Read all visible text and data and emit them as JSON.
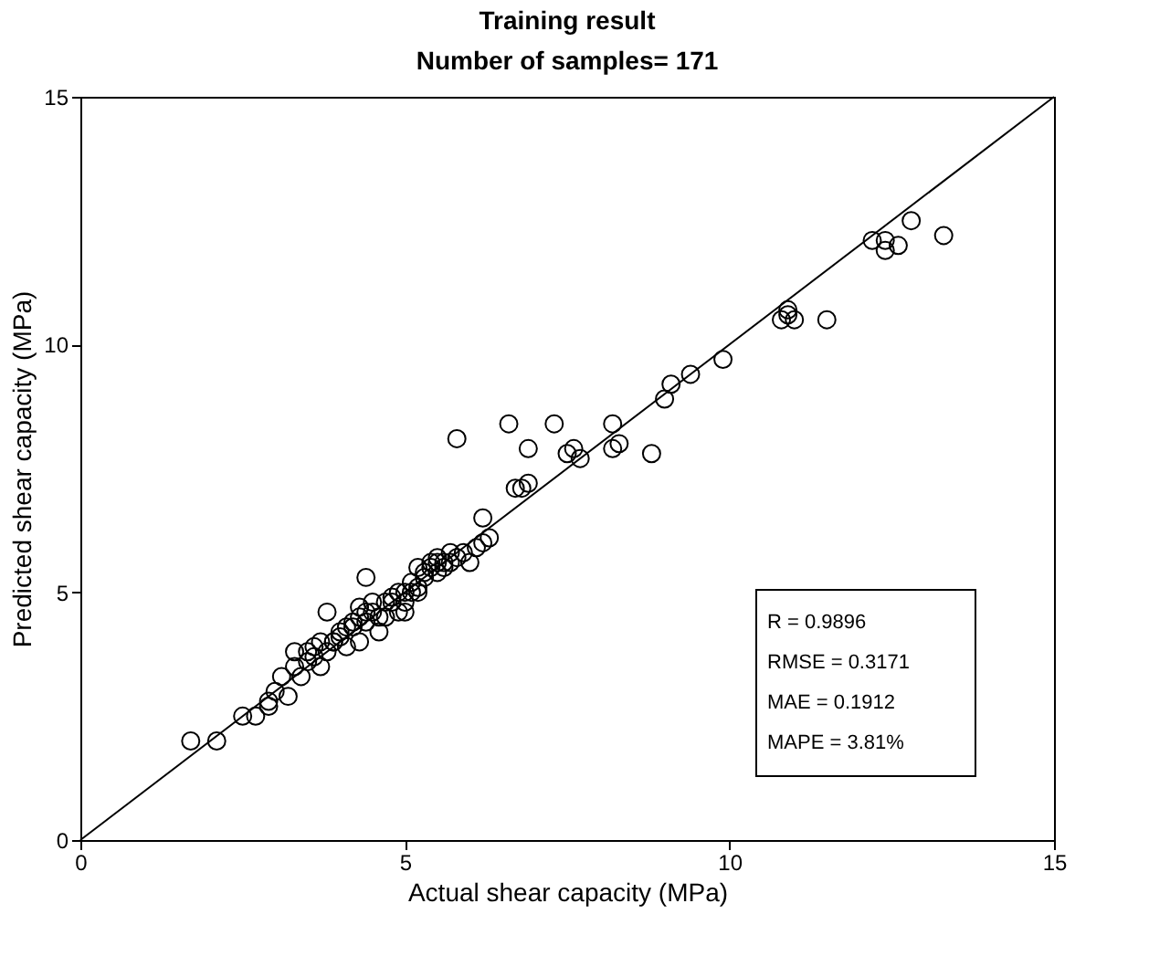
{
  "chart_data": {
    "type": "scatter",
    "title": "Training result",
    "subtitle": "Number of samples= 171",
    "xlabel": "Actual shear capacity (MPa)",
    "ylabel": "Predicted shear capacity (MPa)",
    "xlim": [
      0,
      15
    ],
    "ylim": [
      0,
      15
    ],
    "xticks": [
      0,
      5,
      10,
      15
    ],
    "yticks": [
      0,
      5,
      10,
      15
    ],
    "grid": false,
    "series": [
      {
        "color": "#000000",
        "marker": "circle",
        "x": [
          1.7,
          2.1,
          2.5,
          2.7,
          2.9,
          2.9,
          3.1,
          3.2,
          3.3,
          3.4,
          3.5,
          3.6,
          3.7,
          3.8,
          3.8,
          3.9,
          4.0,
          4.1,
          4.2,
          4.3,
          4.3,
          4.4,
          4.4,
          4.5,
          4.6,
          4.7,
          4.8,
          4.9,
          5.0,
          5.0,
          5.1,
          5.2,
          5.2,
          5.3,
          5.4,
          5.5,
          5.5,
          5.6,
          5.7,
          5.8,
          5.8,
          5.9,
          6.0,
          6.1,
          6.2,
          6.2,
          6.3,
          6.6,
          6.7,
          6.8,
          6.9,
          6.9,
          7.3,
          7.5,
          7.6,
          7.7,
          8.2,
          8.2,
          8.3,
          8.8,
          9.0,
          9.1,
          9.4,
          9.9,
          10.8,
          10.9,
          10.9,
          11.0,
          11.5,
          12.2,
          12.4,
          12.4,
          12.6,
          12.8,
          13.3,
          3.3,
          3.6,
          3.9,
          4.1,
          4.3,
          4.5,
          4.7,
          4.9,
          5.1,
          5.3,
          5.5,
          5.7,
          4.0,
          4.6,
          4.8,
          5.2,
          3.5,
          4.2,
          5.4,
          5.6,
          3.0,
          3.7,
          4.4,
          5.0
        ],
        "values": [
          2.0,
          2.0,
          2.5,
          2.5,
          2.8,
          2.7,
          3.3,
          2.9,
          3.8,
          3.3,
          3.6,
          3.9,
          3.5,
          3.8,
          4.6,
          4.0,
          4.2,
          3.9,
          4.3,
          4.0,
          4.7,
          5.3,
          4.4,
          4.6,
          4.2,
          4.5,
          4.8,
          4.6,
          5.0,
          4.6,
          5.2,
          5.0,
          5.5,
          5.3,
          5.6,
          5.4,
          5.7,
          5.5,
          5.6,
          8.1,
          5.7,
          5.8,
          5.6,
          5.9,
          6.0,
          6.5,
          6.1,
          8.4,
          7.1,
          7.1,
          7.9,
          7.2,
          8.4,
          7.8,
          7.9,
          7.7,
          7.9,
          8.4,
          8.0,
          7.8,
          8.9,
          9.2,
          9.4,
          9.7,
          10.5,
          10.6,
          10.7,
          10.5,
          10.5,
          12.1,
          11.9,
          12.1,
          12.0,
          12.5,
          12.2,
          3.5,
          3.7,
          4.0,
          4.3,
          4.5,
          4.8,
          4.8,
          5.0,
          5.0,
          5.4,
          5.6,
          5.8,
          4.1,
          4.5,
          4.9,
          5.1,
          3.8,
          4.4,
          5.5,
          5.6,
          3.0,
          4.0,
          4.6,
          4.8
        ]
      },
      {
        "type": "line",
        "color": "#000000",
        "marker": "none",
        "x": [
          0,
          15
        ],
        "values": [
          0,
          15
        ]
      }
    ],
    "annotations": [
      "R = 0.9896",
      "RMSE = 0.3171",
      "MAE = 0.1912",
      "MAPE = 3.81%"
    ]
  }
}
